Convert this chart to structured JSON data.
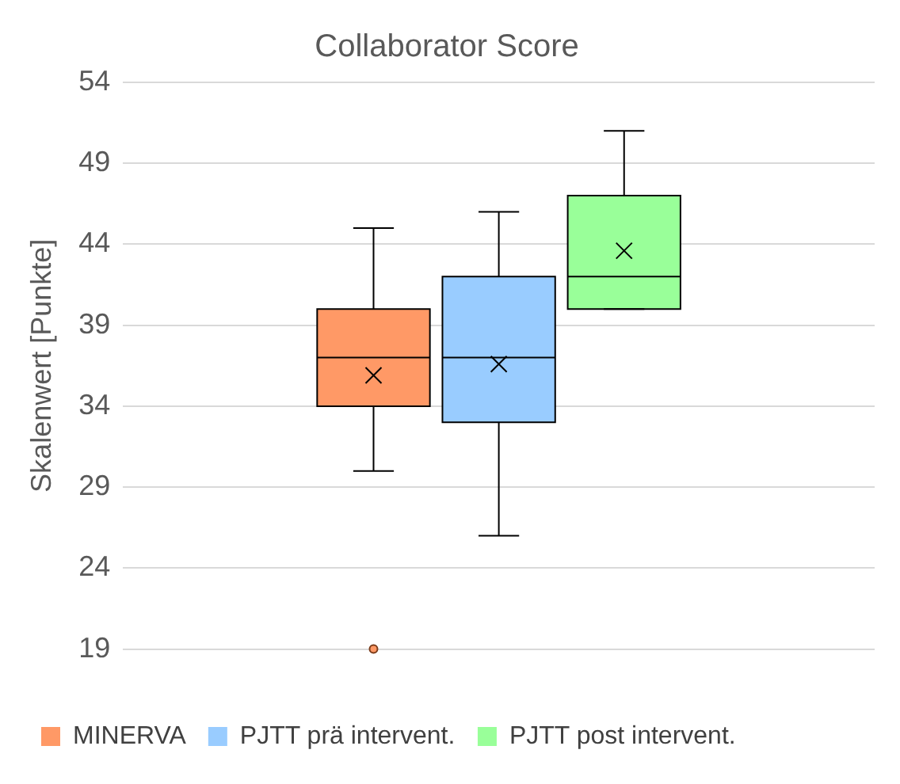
{
  "chart_data": {
    "type": "box",
    "title": "Collaborator Score",
    "ylabel": "Skalenwert [Punkte]",
    "categories": [
      null
    ],
    "series": [
      {
        "name": "MINERVA",
        "color": "#ff9966",
        "boxes": [
          {
            "low": 30,
            "q1": 34,
            "median": 37,
            "q3": 40,
            "high": 45,
            "mean": 35.9,
            "outliers": [
              19
            ]
          }
        ]
      },
      {
        "name": "PJTT prä intervent.",
        "color": "#99ccff",
        "boxes": [
          {
            "low": 26,
            "q1": 33,
            "median": 37,
            "q3": 42,
            "high": 46,
            "mean": 36.6
          }
        ]
      },
      {
        "name": "PJTT post intervent.",
        "color": "#99ff99",
        "boxes": [
          {
            "low": 40,
            "q1": 40,
            "median": 42,
            "q3": 47,
            "high": 51,
            "mean": 43.6
          }
        ]
      }
    ],
    "ylim": [
      19,
      54
    ],
    "yticks": [
      19,
      24,
      29,
      34,
      39,
      44,
      49,
      54
    ],
    "grid": "y",
    "legend": "bottom"
  }
}
